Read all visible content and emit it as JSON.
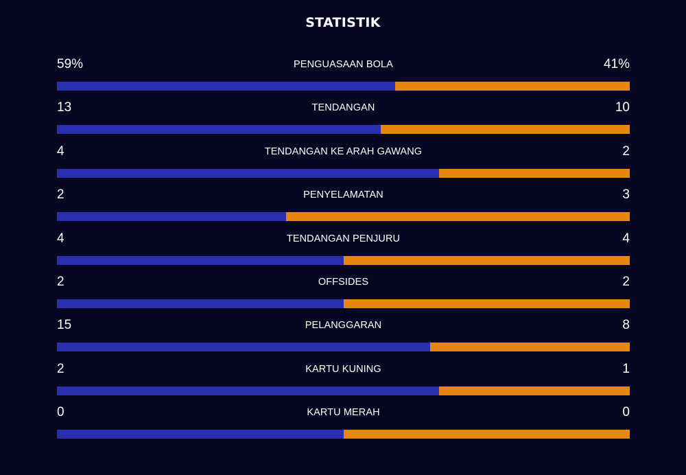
{
  "title": "STATISTIK",
  "colors": {
    "background": "#070721",
    "home": "#2a2fb0",
    "away": "#e8870f"
  },
  "stats": [
    {
      "label": "PENGUASAAN BOLA",
      "home": "59%",
      "away": "41%",
      "home_share": 0.59
    },
    {
      "label": "TENDANGAN",
      "home": "13",
      "away": "10",
      "home_share": 0.565
    },
    {
      "label": "TENDANGAN KE ARAH GAWANG",
      "home": "4",
      "away": "2",
      "home_share": 0.667
    },
    {
      "label": "PENYELAMATAN",
      "home": "2",
      "away": "3",
      "home_share": 0.4
    },
    {
      "label": "TENDANGAN PENJURU",
      "home": "4",
      "away": "4",
      "home_share": 0.5
    },
    {
      "label": "OFFSIDES",
      "home": "2",
      "away": "2",
      "home_share": 0.5
    },
    {
      "label": "PELANGGARAN",
      "home": "15",
      "away": "8",
      "home_share": 0.652
    },
    {
      "label": "KARTU KUNING",
      "home": "2",
      "away": "1",
      "home_share": 0.667
    },
    {
      "label": "KARTU MERAH",
      "home": "0",
      "away": "0",
      "home_share": 0.5
    }
  ]
}
